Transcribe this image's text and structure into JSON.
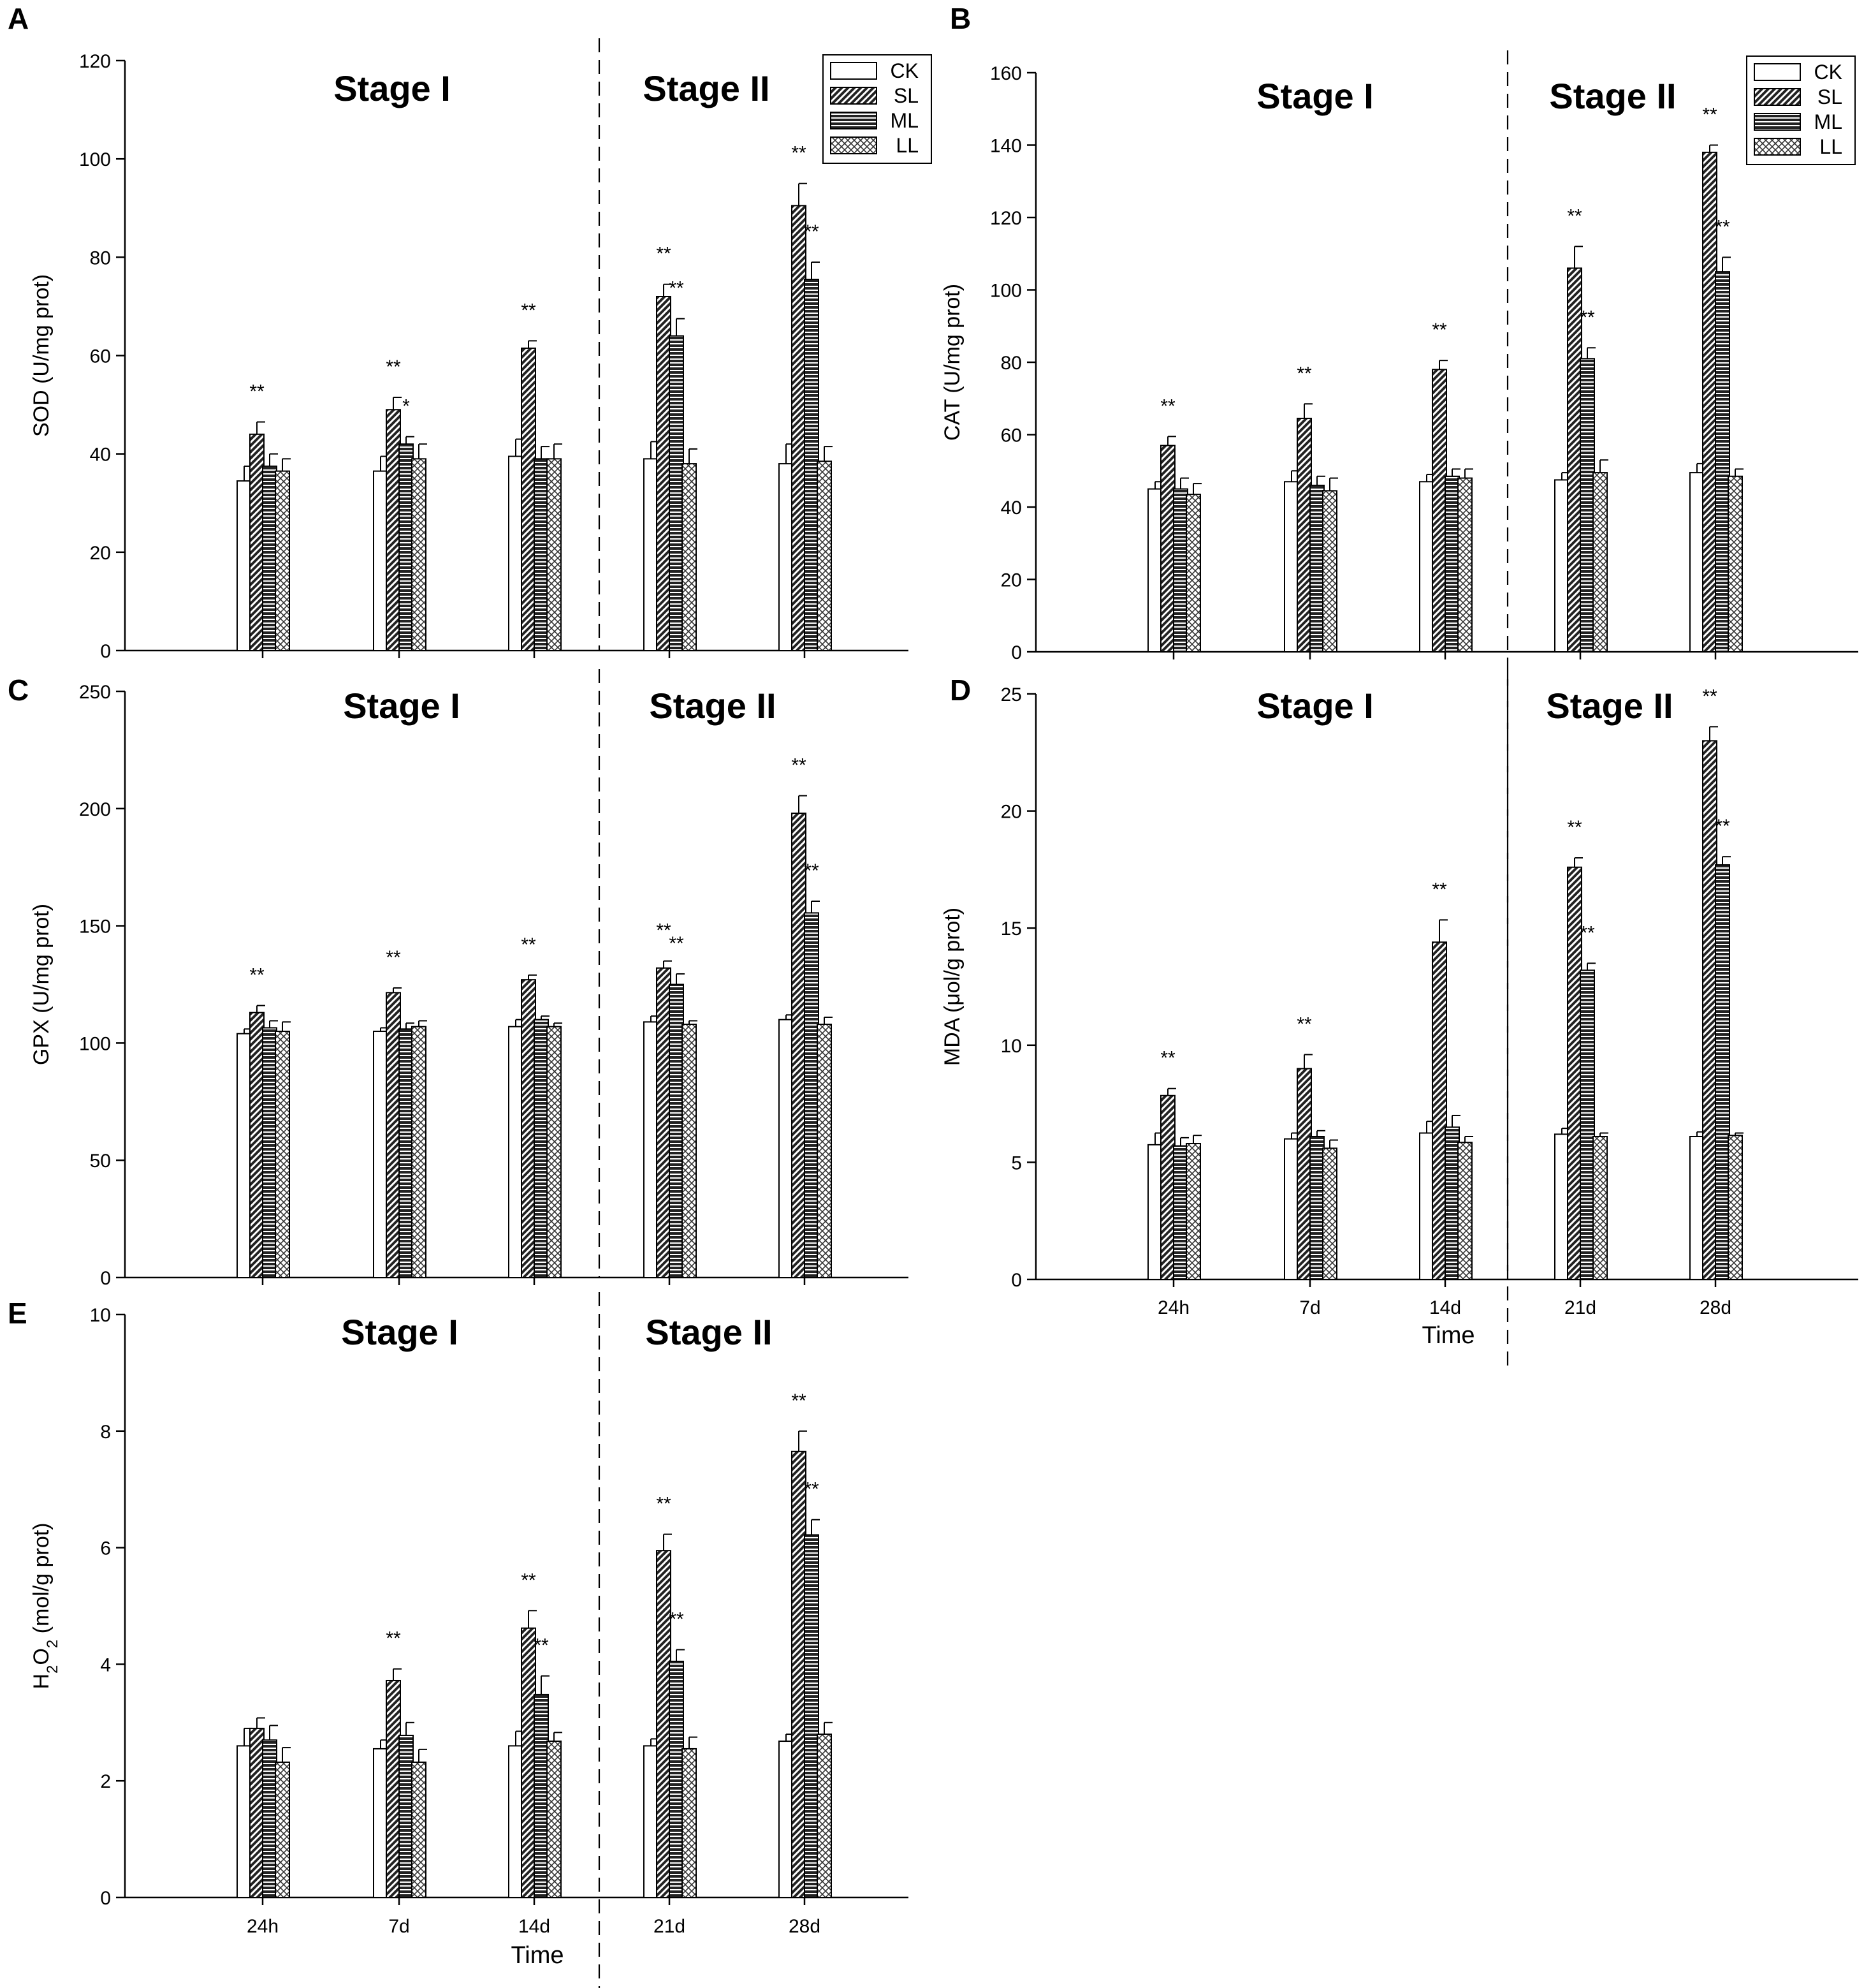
{
  "figure": {
    "legend_entries": [
      "CK",
      "SL",
      "ML",
      "LL"
    ],
    "stage_labels": [
      "Stage I",
      "Stage II"
    ],
    "x_title": "Time"
  },
  "chart_data": [
    {
      "panel": "A",
      "type": "bar",
      "ylabel": "SOD (U/mg prot)",
      "ylim": [
        0,
        120
      ],
      "yticks": [
        0,
        20,
        40,
        60,
        80,
        100,
        120
      ],
      "categories": [
        "24h",
        "7d",
        "14d",
        "21d",
        "28d"
      ],
      "show_x_labels": false,
      "show_legend": true,
      "legend_position": "top-right",
      "series": [
        {
          "name": "CK",
          "values": [
            34.5,
            36.5,
            39.5,
            39.0,
            38.0
          ],
          "errors": [
            3.0,
            3.0,
            3.5,
            3.5,
            4.0
          ]
        },
        {
          "name": "SL",
          "values": [
            44.0,
            49.0,
            61.5,
            72.0,
            90.5
          ],
          "errors": [
            2.5,
            2.5,
            1.5,
            2.5,
            4.5
          ]
        },
        {
          "name": "ML",
          "values": [
            37.5,
            42.0,
            39.0,
            64.0,
            75.5
          ],
          "errors": [
            2.5,
            1.5,
            2.5,
            3.5,
            3.5
          ]
        },
        {
          "name": "LL",
          "values": [
            36.5,
            39.0,
            39.0,
            38.0,
            38.5
          ],
          "errors": [
            2.5,
            3.0,
            3.0,
            3.0,
            3.0
          ]
        }
      ],
      "significance": [
        {
          "category": "24h",
          "series": "SL",
          "text": "**"
        },
        {
          "category": "7d",
          "series": "SL",
          "text": "**"
        },
        {
          "category": "7d",
          "series": "ML",
          "text": "*"
        },
        {
          "category": "14d",
          "series": "SL",
          "text": "**"
        },
        {
          "category": "21d",
          "series": "SL",
          "text": "**"
        },
        {
          "category": "21d",
          "series": "ML",
          "text": "**"
        },
        {
          "category": "28d",
          "series": "SL",
          "text": "**"
        },
        {
          "category": "28d",
          "series": "ML",
          "text": "**"
        }
      ]
    },
    {
      "panel": "B",
      "type": "bar",
      "ylabel": "CAT (U/mg prot)",
      "ylim": [
        0,
        160
      ],
      "yticks": [
        0,
        20,
        40,
        60,
        80,
        100,
        120,
        140,
        160
      ],
      "categories": [
        "24h",
        "7d",
        "14d",
        "21d",
        "28d"
      ],
      "show_x_labels": false,
      "show_legend": true,
      "legend_position": "top-right",
      "series": [
        {
          "name": "CK",
          "values": [
            45.0,
            47.0,
            47.0,
            47.5,
            49.5
          ],
          "errors": [
            2.0,
            3.0,
            2.0,
            2.0,
            2.5
          ]
        },
        {
          "name": "SL",
          "values": [
            57.0,
            64.5,
            78.0,
            106.0,
            138.0
          ],
          "errors": [
            2.5,
            4.0,
            2.5,
            6.0,
            2.0
          ]
        },
        {
          "name": "ML",
          "values": [
            45.0,
            46.0,
            48.5,
            81.0,
            105.0
          ],
          "errors": [
            3.0,
            2.5,
            2.0,
            3.0,
            4.0
          ]
        },
        {
          "name": "LL",
          "values": [
            43.5,
            44.5,
            48.0,
            49.5,
            48.5
          ],
          "errors": [
            3.0,
            3.5,
            2.5,
            3.5,
            2.0
          ]
        }
      ],
      "significance": [
        {
          "category": "24h",
          "series": "SL",
          "text": "**"
        },
        {
          "category": "7d",
          "series": "SL",
          "text": "**"
        },
        {
          "category": "14d",
          "series": "SL",
          "text": "**"
        },
        {
          "category": "21d",
          "series": "SL",
          "text": "**"
        },
        {
          "category": "21d",
          "series": "ML",
          "text": "**"
        },
        {
          "category": "28d",
          "series": "SL",
          "text": "**"
        },
        {
          "category": "28d",
          "series": "ML",
          "text": "**"
        }
      ]
    },
    {
      "panel": "C",
      "type": "bar",
      "ylabel": "GPX (U/mg prot)",
      "ylim": [
        0,
        250
      ],
      "yticks": [
        0,
        50,
        100,
        150,
        200,
        250
      ],
      "categories": [
        "24h",
        "7d",
        "14d",
        "21d",
        "28d"
      ],
      "show_x_labels": false,
      "show_legend": false,
      "series": [
        {
          "name": "CK",
          "values": [
            104.0,
            105.0,
            107.0,
            109.0,
            110.0
          ],
          "errors": [
            2.0,
            1.5,
            3.0,
            2.5,
            2.0
          ]
        },
        {
          "name": "SL",
          "values": [
            113.0,
            121.5,
            127.0,
            132.0,
            198.0
          ],
          "errors": [
            3.0,
            2.0,
            2.0,
            3.0,
            7.5
          ]
        },
        {
          "name": "ML",
          "values": [
            106.5,
            106.0,
            110.0,
            125.0,
            155.5
          ],
          "errors": [
            3.0,
            2.5,
            1.5,
            4.5,
            5.0
          ]
        },
        {
          "name": "LL",
          "values": [
            105.0,
            107.0,
            107.0,
            108.0,
            108.0
          ],
          "errors": [
            4.0,
            2.5,
            1.5,
            1.5,
            3.0
          ]
        }
      ],
      "significance": [
        {
          "category": "24h",
          "series": "SL",
          "text": "**"
        },
        {
          "category": "7d",
          "series": "SL",
          "text": "**"
        },
        {
          "category": "14d",
          "series": "SL",
          "text": "**"
        },
        {
          "category": "21d",
          "series": "SL",
          "text": "**"
        },
        {
          "category": "21d",
          "series": "ML",
          "text": "**"
        },
        {
          "category": "28d",
          "series": "SL",
          "text": "**"
        },
        {
          "category": "28d",
          "series": "ML",
          "text": "**"
        }
      ]
    },
    {
      "panel": "D",
      "type": "bar",
      "ylabel": "MDA (μol/g prot)",
      "ylim": [
        0,
        25
      ],
      "yticks": [
        0,
        5,
        10,
        15,
        20,
        25
      ],
      "categories": [
        "24h",
        "7d",
        "14d",
        "21d",
        "28d"
      ],
      "show_x_labels": true,
      "show_legend": false,
      "series": [
        {
          "name": "CK",
          "values": [
            5.75,
            6.0,
            6.25,
            6.2,
            6.1
          ],
          "errors": [
            0.5,
            0.25,
            0.5,
            0.25,
            0.2
          ]
        },
        {
          "name": "SL",
          "values": [
            7.85,
            9.0,
            14.4,
            17.6,
            23.0
          ],
          "errors": [
            0.3,
            0.6,
            0.95,
            0.4,
            0.6
          ]
        },
        {
          "name": "ML",
          "values": [
            5.7,
            6.1,
            6.5,
            13.2,
            17.7
          ],
          "errors": [
            0.35,
            0.25,
            0.5,
            0.3,
            0.35
          ]
        },
        {
          "name": "LL",
          "values": [
            5.8,
            5.6,
            5.85,
            6.1,
            6.15
          ],
          "errors": [
            0.35,
            0.35,
            0.25,
            0.15,
            0.1
          ]
        }
      ],
      "significance": [
        {
          "category": "24h",
          "series": "SL",
          "text": "**"
        },
        {
          "category": "7d",
          "series": "SL",
          "text": "**"
        },
        {
          "category": "14d",
          "series": "SL",
          "text": "**"
        },
        {
          "category": "21d",
          "series": "SL",
          "text": "**"
        },
        {
          "category": "21d",
          "series": "ML",
          "text": "**"
        },
        {
          "category": "28d",
          "series": "SL",
          "text": "**"
        },
        {
          "category": "28d",
          "series": "ML",
          "text": "**"
        }
      ]
    },
    {
      "panel": "E",
      "type": "bar",
      "ylabel": "H2O2 (mol/g prot)",
      "ylim": [
        0,
        10
      ],
      "yticks": [
        0,
        2,
        4,
        6,
        8,
        10
      ],
      "categories": [
        "24h",
        "7d",
        "14d",
        "21d",
        "28d"
      ],
      "show_x_labels": true,
      "show_legend": false,
      "series": [
        {
          "name": "CK",
          "values": [
            2.6,
            2.55,
            2.6,
            2.6,
            2.68
          ],
          "errors": [
            0.3,
            0.15,
            0.25,
            0.12,
            0.12
          ]
        },
        {
          "name": "SL",
          "values": [
            2.9,
            3.72,
            4.62,
            5.95,
            7.65
          ],
          "errors": [
            0.18,
            0.2,
            0.3,
            0.28,
            0.35
          ]
        },
        {
          "name": "ML",
          "values": [
            2.7,
            2.78,
            3.48,
            4.05,
            6.22
          ],
          "errors": [
            0.25,
            0.22,
            0.32,
            0.2,
            0.26
          ]
        },
        {
          "name": "LL",
          "values": [
            2.32,
            2.32,
            2.68,
            2.55,
            2.8
          ],
          "errors": [
            0.25,
            0.22,
            0.15,
            0.2,
            0.2
          ]
        }
      ],
      "significance": [
        {
          "category": "7d",
          "series": "SL",
          "text": "**"
        },
        {
          "category": "14d",
          "series": "SL",
          "text": "**"
        },
        {
          "category": "14d",
          "series": "ML",
          "text": "**"
        },
        {
          "category": "21d",
          "series": "SL",
          "text": "**"
        },
        {
          "category": "21d",
          "series": "ML",
          "text": "**"
        },
        {
          "category": "28d",
          "series": "SL",
          "text": "**"
        },
        {
          "category": "28d",
          "series": "ML",
          "text": "**"
        }
      ]
    }
  ]
}
